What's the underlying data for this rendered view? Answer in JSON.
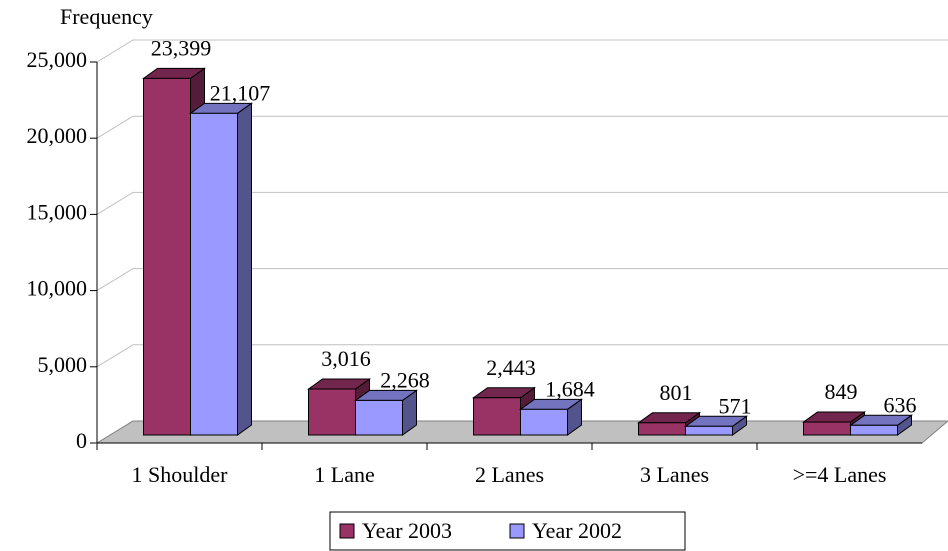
{
  "chart_data": {
    "type": "bar3d",
    "y_axis_label": "Frequency",
    "categories": [
      "1 Shoulder",
      "1 Lane",
      "2 Lanes",
      "3 Lanes",
      ">=4 Lanes"
    ],
    "series": [
      {
        "name": "Year 2003",
        "color": "#993366",
        "values": [
          23399,
          3016,
          2443,
          801,
          849
        ],
        "value_labels": [
          "23,399",
          "3,016",
          "2,443",
          "801",
          "849"
        ]
      },
      {
        "name": "Year 2002",
        "color": "#9999ff",
        "values": [
          21107,
          2268,
          1684,
          571,
          636
        ],
        "value_labels": [
          "21,107",
          "2,268",
          "1,684",
          "571",
          "636"
        ]
      }
    ],
    "ylim": [
      0,
      25000
    ],
    "yticks": [
      0,
      {
        "value": 5000,
        "label": "5,000"
      },
      {
        "value": 10000,
        "label": "10,000"
      },
      {
        "value": 15000,
        "label": "15,000"
      },
      {
        "value": 20000,
        "label": "20,000"
      },
      {
        "value": 25000,
        "label": "25,000"
      }
    ],
    "grid": true
  }
}
